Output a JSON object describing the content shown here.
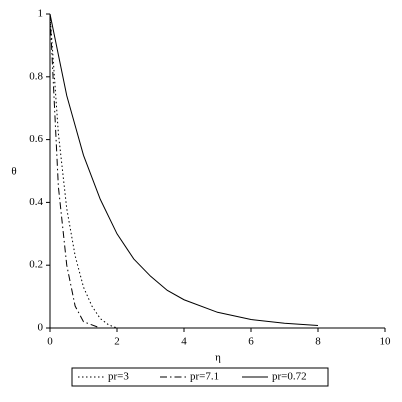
{
  "chart_data": {
    "type": "line",
    "xlabel": "η",
    "ylabel": "θ",
    "xlim": [
      0,
      10
    ],
    "ylim": [
      0,
      1
    ],
    "xticks": [
      0,
      2,
      4,
      6,
      8,
      10
    ],
    "yticks": [
      0,
      0.2,
      0.4,
      0.6,
      0.8,
      1
    ],
    "legend": "bottom",
    "series": [
      {
        "name": "pr=3",
        "color": "#000000",
        "dash": "dotted",
        "x": [
          0,
          0.25,
          0.5,
          0.75,
          1,
          1.25,
          1.5,
          1.75,
          2
        ],
        "values": [
          1,
          0.62,
          0.38,
          0.23,
          0.13,
          0.07,
          0.03,
          0.01,
          0
        ]
      },
      {
        "name": "pr=7.1",
        "color": "#000000",
        "dash": "dashdot",
        "x": [
          0,
          0.25,
          0.5,
          0.75,
          1,
          1.5,
          2,
          3,
          3.4
        ],
        "values": [
          1,
          0.45,
          0.2,
          0.07,
          0.02,
          0,
          0,
          0,
          0
        ]
      },
      {
        "name": "pr=0.72",
        "color": "#000000",
        "dash": "solid",
        "x": [
          0,
          0.5,
          1,
          1.5,
          2,
          2.5,
          3,
          3.5,
          4,
          5,
          6,
          7,
          8
        ],
        "values": [
          1,
          0.74,
          0.55,
          0.41,
          0.3,
          0.22,
          0.165,
          0.12,
          0.09,
          0.05,
          0.027,
          0.015,
          0.008
        ]
      }
    ]
  }
}
